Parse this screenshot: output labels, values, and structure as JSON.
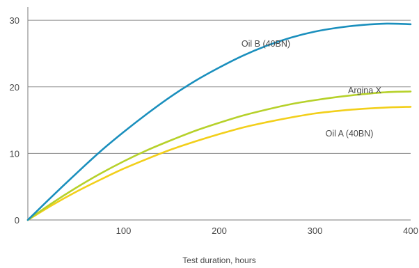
{
  "chart_data": {
    "type": "line",
    "xlabel": "Test duration, hours",
    "ylabel": "",
    "xlim": [
      0,
      400
    ],
    "ylim": [
      0,
      32
    ],
    "x_ticks": [
      100,
      200,
      300,
      400
    ],
    "y_ticks": [
      0,
      10,
      20,
      30
    ],
    "grid": "horizontal",
    "legend": "inline labels",
    "series": [
      {
        "name": "Oil B (40BN)",
        "color": "#1a8fbd",
        "x": [
          0,
          25,
          50,
          75,
          100,
          125,
          150,
          175,
          200,
          225,
          250,
          275,
          300,
          325,
          350,
          375,
          400
        ],
        "y": [
          0,
          3.5,
          6.9,
          10.2,
          13.2,
          16.0,
          18.6,
          20.9,
          22.9,
          24.7,
          26.2,
          27.4,
          28.3,
          28.9,
          29.3,
          29.5,
          29.4
        ]
      },
      {
        "name": "Argina X",
        "color": "#b6d12a",
        "x": [
          0,
          25,
          50,
          75,
          100,
          125,
          150,
          175,
          200,
          225,
          250,
          275,
          300,
          325,
          350,
          375,
          400
        ],
        "y": [
          0,
          2.5,
          4.8,
          6.9,
          8.8,
          10.5,
          12.0,
          13.4,
          14.6,
          15.7,
          16.6,
          17.4,
          18.0,
          18.5,
          18.9,
          19.2,
          19.3
        ]
      },
      {
        "name": "Oil A (40BN)",
        "color": "#f2cf1a",
        "x": [
          0,
          25,
          50,
          75,
          100,
          125,
          150,
          175,
          200,
          225,
          250,
          275,
          300,
          325,
          350,
          375,
          400
        ],
        "y": [
          0,
          2.2,
          4.2,
          6.0,
          7.7,
          9.2,
          10.6,
          11.8,
          12.9,
          13.9,
          14.7,
          15.4,
          16.0,
          16.4,
          16.7,
          16.9,
          17.0
        ]
      }
    ]
  }
}
